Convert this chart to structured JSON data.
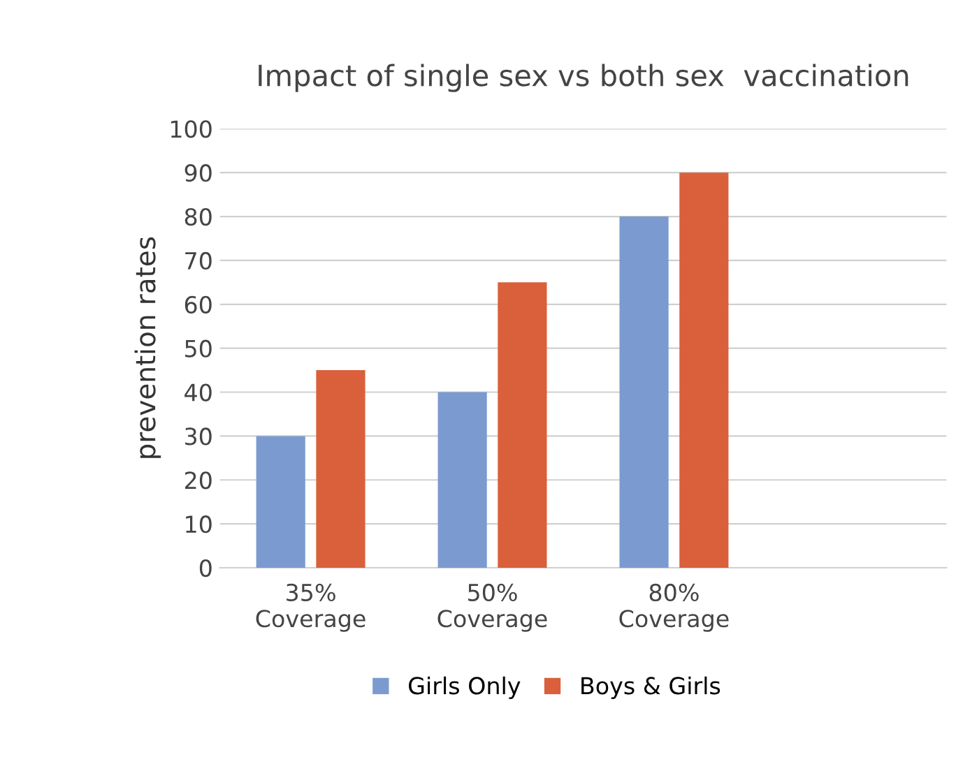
{
  "chart_data": {
    "type": "bar",
    "title": "Impact of single sex vs both sex  vaccination",
    "ylabel": "prevention rates",
    "categories": [
      "35%\nCoverage",
      "50%\nCoverage",
      "80%\nCoverage",
      null
    ],
    "series": [
      {
        "name": "Girls Only",
        "color": "#7b9bd0",
        "values": [
          30,
          40,
          80,
          null
        ]
      },
      {
        "name": "Boys & Girls",
        "color": "#d9603b",
        "values": [
          45,
          65,
          90,
          null
        ]
      }
    ],
    "ylim": [
      0,
      100
    ],
    "yticks": [
      0,
      10,
      20,
      30,
      40,
      50,
      60,
      70,
      80,
      90,
      100
    ],
    "grid": "y",
    "legend": "bottom"
  }
}
